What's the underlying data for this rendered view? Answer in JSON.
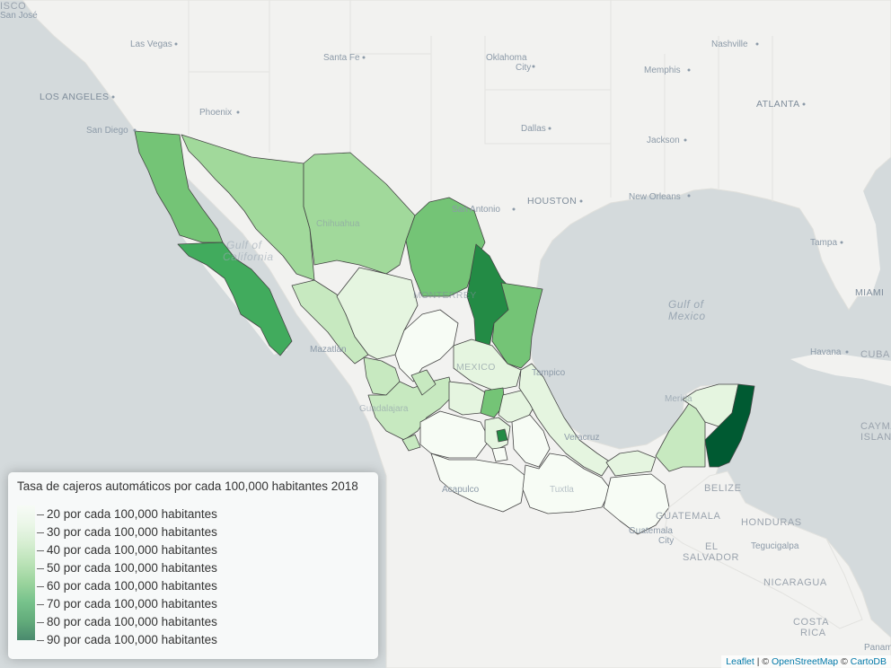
{
  "legend": {
    "title": "Tasa de cajeros automáticos por cada 100,000 habitantes 2018",
    "items": [
      {
        "label": "20 por cada 100,000 habitantes",
        "value": 20,
        "color": "#f7fcf5"
      },
      {
        "label": "30 por cada 100,000 habitantes",
        "value": 30,
        "color": "#e5f5e0"
      },
      {
        "label": "40 por cada 100,000 habitantes",
        "value": 40,
        "color": "#c7e9c0"
      },
      {
        "label": "50 por cada 100,000 habitantes",
        "value": 50,
        "color": "#a1d99b"
      },
      {
        "label": "60 por cada 100,000 habitantes",
        "value": 60,
        "color": "#74c476"
      },
      {
        "label": "70 por cada 100,000 habitantes",
        "value": 70,
        "color": "#41ab5d"
      },
      {
        "label": "80 por cada 100,000 habitantes",
        "value": 80,
        "color": "#238b45"
      },
      {
        "label": "90 por cada 100,000 habitantes",
        "value": 90,
        "color": "#005a32"
      }
    ]
  },
  "attribution": {
    "leaflet": "Leaflet",
    "sep1": " | © ",
    "osm": "OpenStreetMap",
    "sep2": " © ",
    "carto": "CartoDB"
  },
  "basemap_labels": {
    "cities": [
      "Las Vegas",
      "Santa Fe",
      "Oklahoma",
      "City",
      "Nashville",
      "Memphis",
      "LOS ANGELES",
      "Phoenix",
      "ATLANTA",
      "San Diego",
      "Dallas",
      "Jackson",
      "HOUSTON",
      "New Orleans",
      "San Antonio",
      "Tampa",
      "MIAMI",
      "Havana",
      "CUBA",
      "Mazatlán",
      "Tampico",
      "Veracruz",
      "Acapulco",
      "BELIZE",
      "GUATEMALA",
      "Guatemala",
      "HONDURAS",
      "Tegucigalpa",
      "EL",
      "SALVADOR",
      "NICARAGUA",
      "COSTA",
      "RICA",
      "CAYMA",
      "ISLAN",
      "Panam",
      "ISCO",
      "San José",
      "Merida",
      "Chihuahua",
      "MONTERREY",
      "MEXICO",
      "Guadalajara",
      "Tuxtla"
    ],
    "seas": [
      "Gulf of",
      "Mexico",
      "Gulf of",
      "California"
    ]
  },
  "colors": {
    "land": "#f2f2f0",
    "water": "#d4dadc",
    "border": "#444444"
  }
}
